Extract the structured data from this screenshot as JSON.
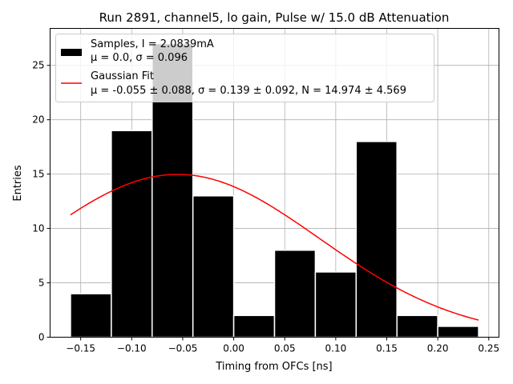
{
  "chart_data": {
    "type": "bar",
    "title": "Run 2891, channel5, lo gain, Pulse w/ 15.0 dB Attenuation",
    "xlabel": "Timing from OFCs [ns]",
    "ylabel": "Entries",
    "xlim": [
      -0.18,
      0.26
    ],
    "ylim": [
      0,
      28.4
    ],
    "grid": true,
    "legend_position": "top-left",
    "xticks": [
      -0.15,
      -0.1,
      -0.05,
      0.0,
      0.05,
      0.1,
      0.15,
      0.2,
      0.25
    ],
    "xtick_labels": [
      "−0.15",
      "−0.10",
      "−0.05",
      "0.00",
      "0.05",
      "0.10",
      "0.15",
      "0.20",
      "0.25"
    ],
    "yticks": [
      0,
      5,
      10,
      15,
      20,
      25
    ],
    "ytick_labels": [
      "0",
      "5",
      "10",
      "15",
      "20",
      "25"
    ],
    "histogram": {
      "bin_edges": [
        -0.16,
        -0.12,
        -0.08,
        -0.04,
        0.0,
        0.04,
        0.08,
        0.12,
        0.16,
        0.2,
        0.24
      ],
      "counts": [
        4,
        19,
        27,
        13,
        2,
        8,
        6,
        18,
        2,
        1
      ],
      "color": "#000000",
      "edge_color": "#ffffff"
    },
    "fit": {
      "mu": -0.055,
      "sigma": 0.139,
      "N": 14.974,
      "x_range": [
        -0.16,
        0.24
      ],
      "color": "#ff0000"
    },
    "legend": [
      {
        "series": "samples",
        "line1": "Samples, I = 2.0839mA",
        "line2": "μ = 0.0, σ = 0.096"
      },
      {
        "series": "fit",
        "line1": "Gaussian Fit",
        "line2": "μ = -0.055 ± 0.088, σ = 0.139 ± 0.092, N = 14.974 ± 4.569"
      }
    ]
  }
}
